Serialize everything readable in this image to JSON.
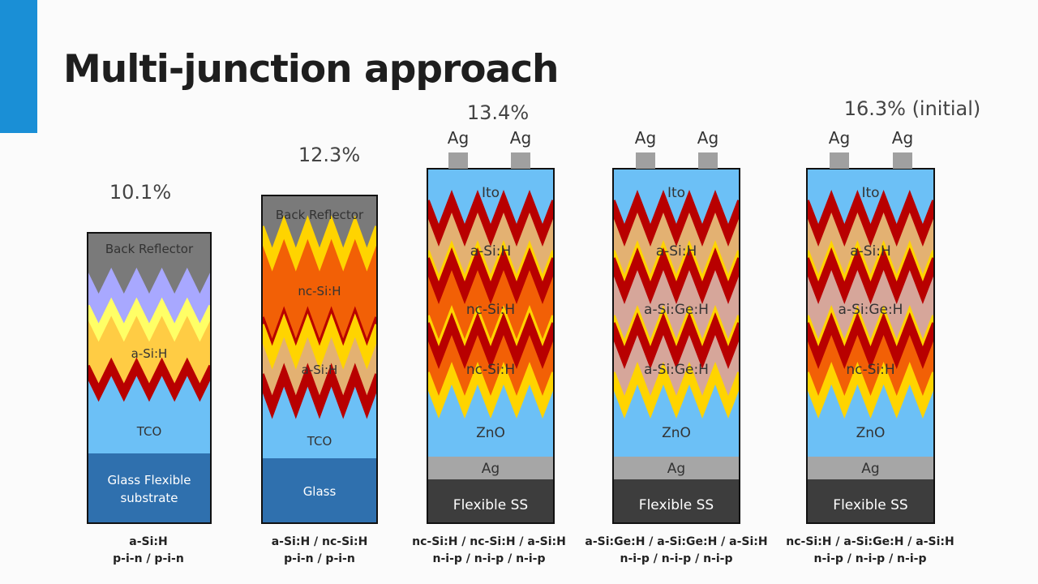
{
  "title": "Multi-junction approach",
  "colors": {
    "accent": "#1a8fd6",
    "red_stripe": "#b80000",
    "yellow_stripe": "#ffd400",
    "light_yellow_stripe": "#ffff66",
    "border": "#111111"
  },
  "cells": [
    {
      "efficiency": "10.1%",
      "contacts": [],
      "layers": [
        {
          "label": "Back Reflector",
          "color": "#7a7a7a",
          "text_color": "#333333"
        },
        {
          "label": "",
          "color": "#a8a8ff",
          "text_color": "#333333"
        },
        {
          "label": "a-Si:H",
          "color": "#ffcc44",
          "text_color": "#333333"
        },
        {
          "label": "TCO",
          "color": "#6cc0f6",
          "text_color": "#333333"
        },
        {
          "label": "Glass Flexible substrate",
          "lines": [
            "Glass Flexible",
            "substrate"
          ],
          "color": "#2f70ae",
          "text_color": "#ffffff"
        }
      ],
      "boundaries": [
        {
          "shape": "zigzag",
          "stripes": []
        },
        {
          "shape": "zigzag",
          "stripes": [
            "#ffff66"
          ]
        },
        {
          "shape": "zigzag",
          "stripes": [
            "#b80000"
          ]
        },
        {
          "shape": "flat",
          "stripes": []
        }
      ],
      "caption": [
        "a-Si:H",
        "p-i-n / p-i-n"
      ]
    },
    {
      "efficiency": "12.3%",
      "contacts": [],
      "layers": [
        {
          "label": "Back Reflector",
          "color": "#7a7a7a",
          "text_color": "#333333"
        },
        {
          "label": "nc-Si:H",
          "color": "#f26006",
          "text_color": "#333333"
        },
        {
          "label": "a-Si:H",
          "color": "#e3b172",
          "text_color": "#333333"
        },
        {
          "label": "TCO",
          "color": "#6cc0f6",
          "text_color": "#333333"
        },
        {
          "label": "Glass",
          "color": "#2f70ae",
          "text_color": "#ffffff"
        }
      ],
      "boundaries": [
        {
          "shape": "zigzag",
          "stripes": [
            "#ffd400"
          ]
        },
        {
          "shape": "zigzag",
          "stripes": [
            "#b80000",
            "#ffd400"
          ]
        },
        {
          "shape": "zigzag",
          "stripes": [
            "#b80000"
          ]
        },
        {
          "shape": "flat",
          "stripes": []
        }
      ],
      "caption": [
        "a-Si:H / nc-Si:H",
        "p-i-n / p-i-n"
      ]
    },
    {
      "efficiency": "13.4%",
      "contacts": [
        "Ag",
        "Ag"
      ],
      "contact_color": "#a0a0a0",
      "layers": [
        {
          "label": "Ito",
          "color": "#6cc0f6",
          "text_color": "#333333"
        },
        {
          "label": "a-Si:H",
          "color": "#e3b172",
          "text_color": "#333333"
        },
        {
          "label": "nc-Si:H",
          "color": "#f26006",
          "text_color": "#333333"
        },
        {
          "label": "nc-Si:H",
          "color": "#f26006",
          "text_color": "#333333"
        },
        {
          "label": "ZnO",
          "color": "#6cc0f6",
          "text_color": "#333333"
        },
        {
          "label": "Ag",
          "color": "#a6a6a6",
          "text_color": "#333333"
        },
        {
          "label": "Flexible SS",
          "color": "#3d3d3d",
          "text_color": "#ffffff"
        }
      ],
      "boundaries": [
        {
          "shape": "zigzag",
          "stripes": [
            "#b80000"
          ]
        },
        {
          "shape": "zigzag",
          "stripes": [
            "#ffd400",
            "#b80000"
          ]
        },
        {
          "shape": "zigzag",
          "stripes": [
            "#ffd400",
            "#b80000"
          ]
        },
        {
          "shape": "zigzag",
          "stripes": [
            "#ffd400"
          ]
        },
        {
          "shape": "flat",
          "stripes": []
        },
        {
          "shape": "flat",
          "stripes": []
        }
      ],
      "caption": [
        "nc-Si:H / nc-Si:H / a-Si:H",
        "n-i-p / n-i-p / n-i-p"
      ]
    },
    {
      "efficiency": "",
      "contacts": [
        "Ag",
        "Ag"
      ],
      "contact_color": "#a0a0a0",
      "layers": [
        {
          "label": "Ito",
          "color": "#6cc0f6",
          "text_color": "#333333"
        },
        {
          "label": "a-Si:H",
          "color": "#e3b172",
          "text_color": "#333333"
        },
        {
          "label": "a-Si:Ge:H",
          "color": "#d6a69a",
          "text_color": "#333333"
        },
        {
          "label": "a-Si:Ge:H",
          "color": "#d6a69a",
          "text_color": "#333333"
        },
        {
          "label": "ZnO",
          "color": "#6cc0f6",
          "text_color": "#333333"
        },
        {
          "label": "Ag",
          "color": "#a6a6a6",
          "text_color": "#333333"
        },
        {
          "label": "Flexible SS",
          "color": "#3d3d3d",
          "text_color": "#ffffff"
        }
      ],
      "boundaries": [
        {
          "shape": "zigzag",
          "stripes": [
            "#b80000"
          ]
        },
        {
          "shape": "zigzag",
          "stripes": [
            "#ffd400",
            "#b80000"
          ]
        },
        {
          "shape": "zigzag",
          "stripes": [
            "#ffd400",
            "#b80000"
          ]
        },
        {
          "shape": "zigzag",
          "stripes": [
            "#ffd400"
          ]
        },
        {
          "shape": "flat",
          "stripes": []
        },
        {
          "shape": "flat",
          "stripes": []
        }
      ],
      "caption": [
        "a-Si:Ge:H / a-Si:Ge:H / a-Si:H",
        "n-i-p / n-i-p / n-i-p"
      ]
    },
    {
      "efficiency": "16.3% (initial)",
      "contacts": [
        "Ag",
        "Ag"
      ],
      "contact_color": "#a0a0a0",
      "layers": [
        {
          "label": "Ito",
          "color": "#6cc0f6",
          "text_color": "#333333"
        },
        {
          "label": "a-Si:H",
          "color": "#e3b172",
          "text_color": "#333333"
        },
        {
          "label": "a-Si:Ge:H",
          "color": "#d6a69a",
          "text_color": "#333333"
        },
        {
          "label": "nc-Si:H",
          "color": "#f26006",
          "text_color": "#333333"
        },
        {
          "label": "ZnO",
          "color": "#6cc0f6",
          "text_color": "#333333"
        },
        {
          "label": "Ag",
          "color": "#a6a6a6",
          "text_color": "#333333"
        },
        {
          "label": "Flexible SS",
          "color": "#3d3d3d",
          "text_color": "#ffffff"
        }
      ],
      "boundaries": [
        {
          "shape": "zigzag",
          "stripes": [
            "#b80000"
          ]
        },
        {
          "shape": "zigzag",
          "stripes": [
            "#ffd400",
            "#b80000"
          ]
        },
        {
          "shape": "zigzag",
          "stripes": [
            "#ffd400",
            "#b80000"
          ]
        },
        {
          "shape": "zigzag",
          "stripes": [
            "#ffd400"
          ]
        },
        {
          "shape": "flat",
          "stripes": []
        },
        {
          "shape": "flat",
          "stripes": []
        }
      ],
      "caption": [
        "nc-Si:H / a-Si:Ge:H / a-Si:H",
        "n-i-p / n-i-p / n-i-p"
      ]
    }
  ]
}
